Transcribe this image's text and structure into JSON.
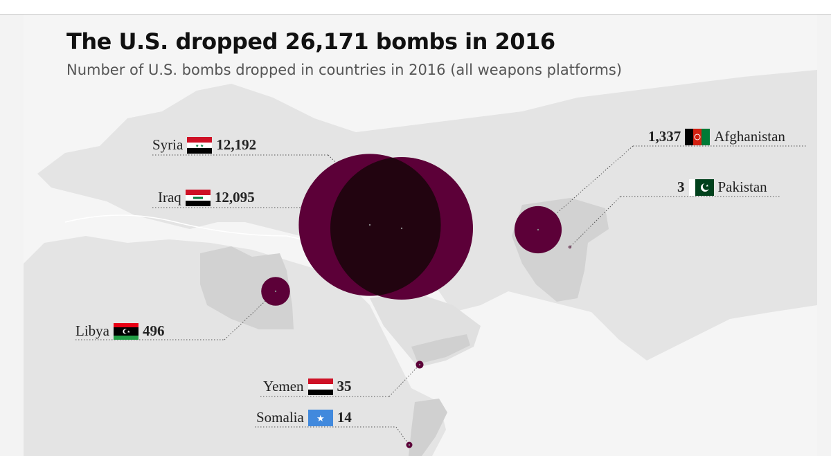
{
  "title": "The U.S. dropped 26,171 bombs in 2016",
  "subtitle": "Number of U.S. bombs dropped in countries in 2016 (all weapons platforms)",
  "colors": {
    "bubble": "#5c0038",
    "bubble_overlap": "#220410",
    "land": "#e2e2e2",
    "land_highlight": "#d4d4d4",
    "sea": "#f5f5f5"
  },
  "countries": [
    {
      "name": "Syria",
      "value": 12192,
      "display": "12,192",
      "flag": "syria-flag-icon"
    },
    {
      "name": "Iraq",
      "value": 12095,
      "display": "12,095",
      "flag": "iraq-flag-icon"
    },
    {
      "name": "Afghanistan",
      "value": 1337,
      "display": "1,337",
      "flag": "afghanistan-flag-icon"
    },
    {
      "name": "Pakistan",
      "value": 3,
      "display": "3",
      "flag": "pakistan-flag-icon"
    },
    {
      "name": "Libya",
      "value": 496,
      "display": "496",
      "flag": "libya-flag-icon"
    },
    {
      "name": "Yemen",
      "value": 35,
      "display": "35",
      "flag": "yemen-flag-icon"
    },
    {
      "name": "Somalia",
      "value": 14,
      "display": "14",
      "flag": "somalia-flag-icon"
    }
  ]
}
